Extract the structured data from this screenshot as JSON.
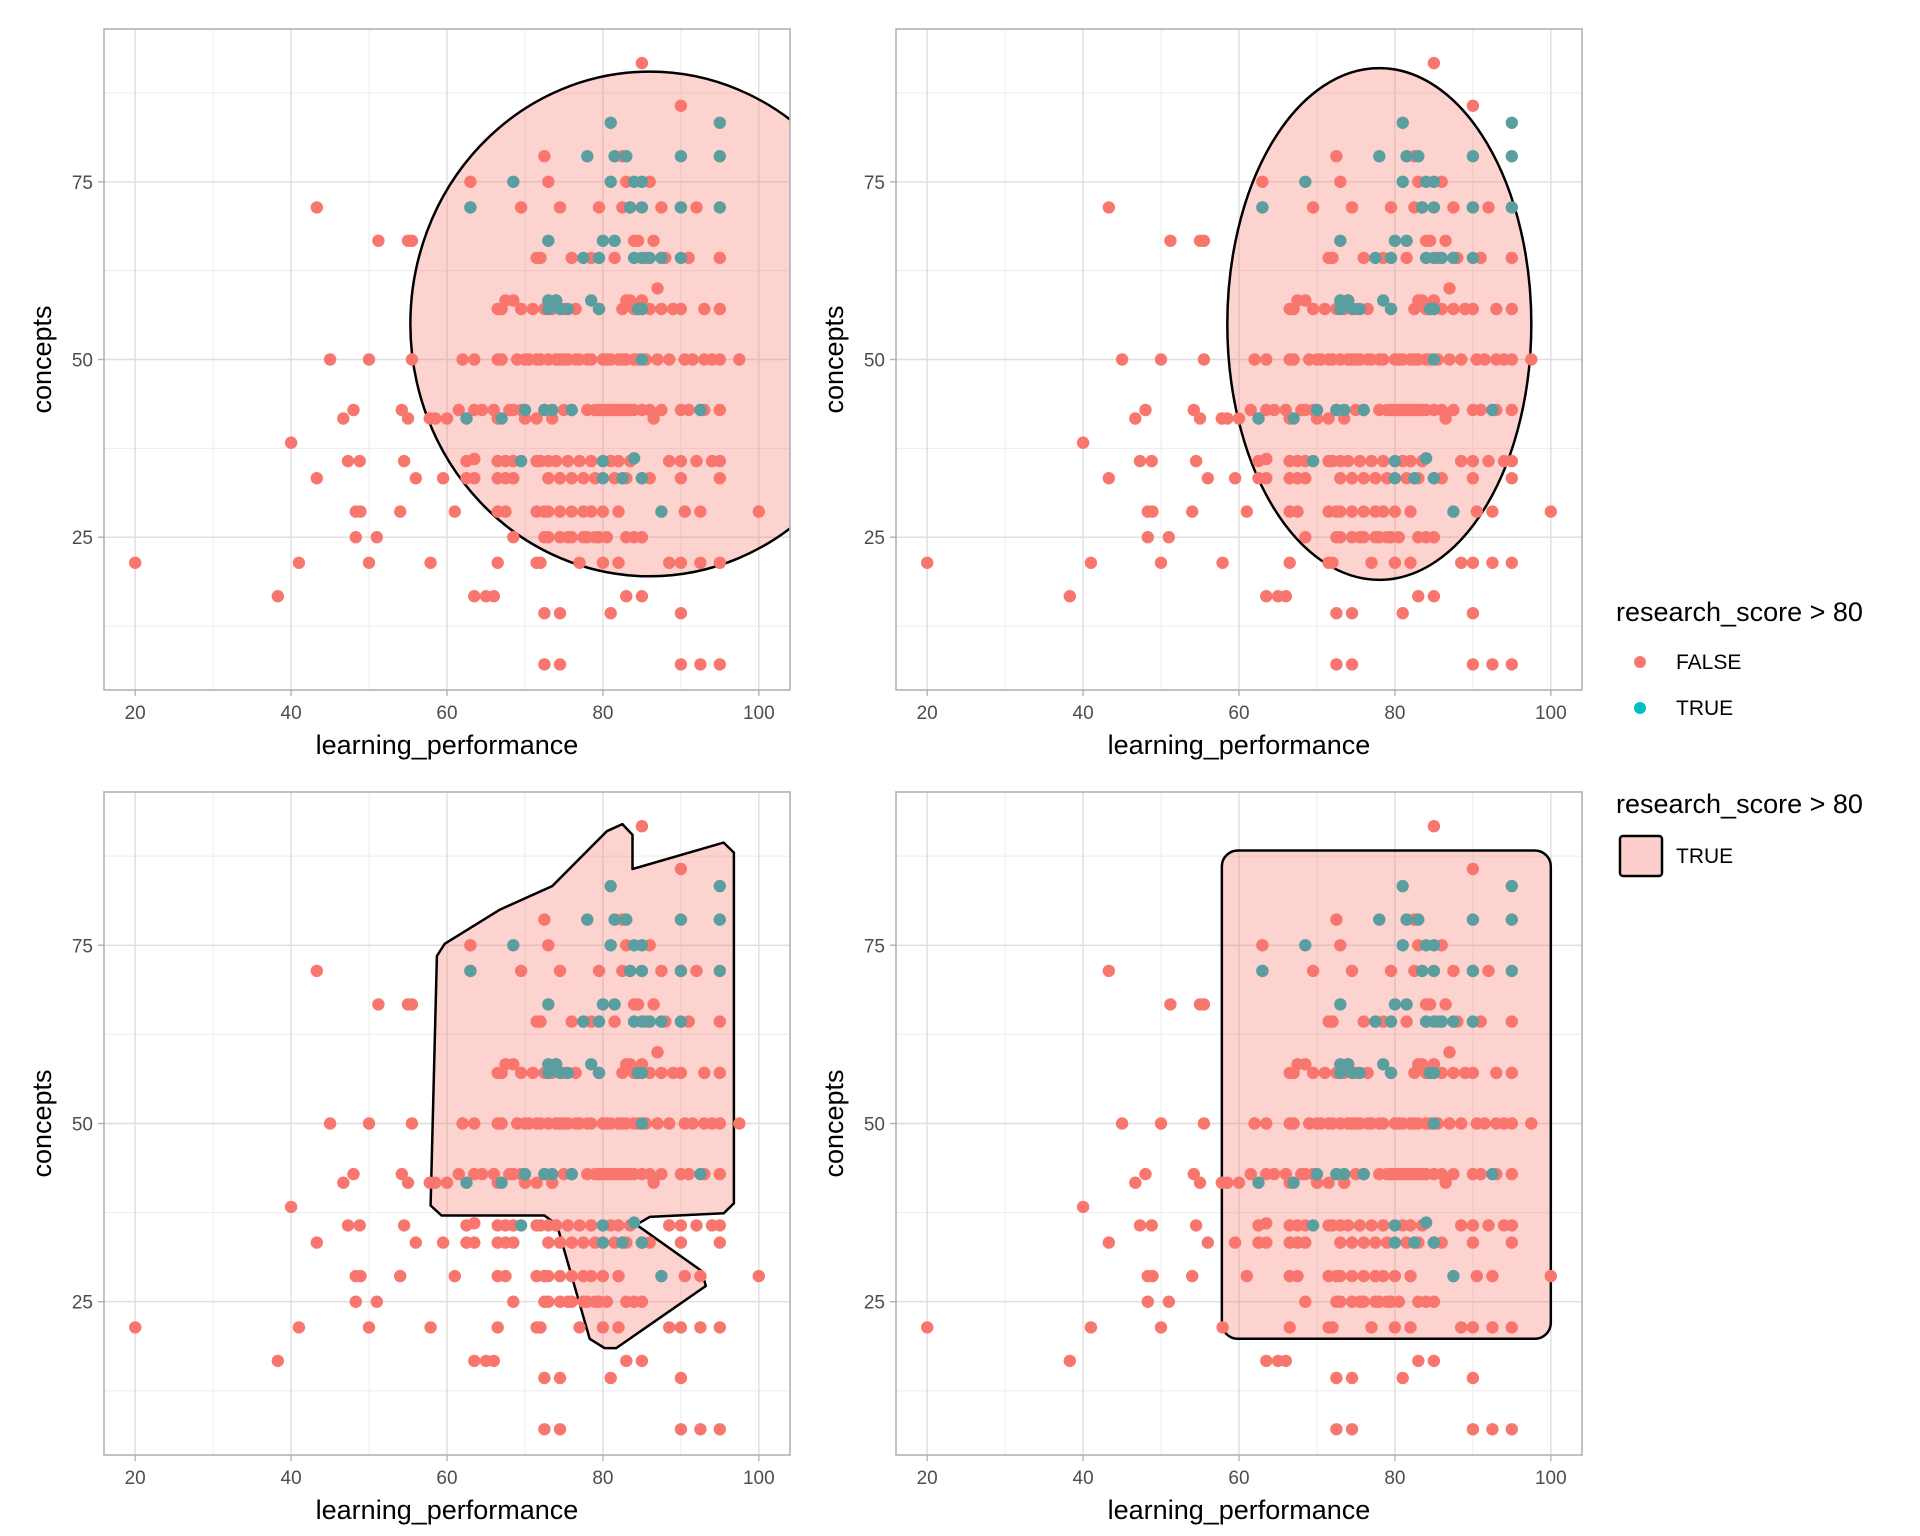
{
  "chart_data": {
    "type": "scatter",
    "xlabel": "learning_performance",
    "ylabel": "concepts",
    "xlim": [
      16,
      104
    ],
    "ylim": [
      3.5,
      96.5
    ],
    "xticks": [
      20,
      40,
      60,
      80,
      100
    ],
    "yticks": [
      25,
      50,
      75
    ],
    "grid": true,
    "legends": [
      {
        "title": "research_score > 80",
        "kind": "points",
        "items": [
          {
            "label": "FALSE",
            "color": "#F8766D"
          },
          {
            "label": "TRUE",
            "color": "#00BFC4"
          }
        ]
      },
      {
        "title": "research_score > 80",
        "kind": "fill",
        "items": [
          {
            "label": "TRUE",
            "color": "#F8766D"
          }
        ]
      }
    ],
    "series": [
      {
        "name": "FALSE",
        "color": "#F8766D",
        "points": [
          [
            20,
            21.4
          ],
          [
            38.3,
            16.7
          ],
          [
            40,
            38.3
          ],
          [
            41,
            21.4
          ],
          [
            43.3,
            71.4
          ],
          [
            43.3,
            33.3
          ],
          [
            45,
            50
          ],
          [
            46.7,
            41.7
          ],
          [
            47.3,
            35.7
          ],
          [
            48,
            42.9
          ],
          [
            48.3,
            28.6
          ],
          [
            48.3,
            25
          ],
          [
            48.8,
            35.7
          ],
          [
            48.9,
            28.6
          ],
          [
            50,
            50
          ],
          [
            50,
            21.4
          ],
          [
            51,
            25
          ],
          [
            51.2,
            66.7
          ],
          [
            54,
            28.6
          ],
          [
            54.2,
            42.9
          ],
          [
            54.5,
            35.7
          ],
          [
            55,
            66.7
          ],
          [
            55.5,
            66.7
          ],
          [
            55,
            41.7
          ],
          [
            55.5,
            50
          ],
          [
            56,
            33.3
          ],
          [
            57.8,
            41.7
          ],
          [
            57.9,
            21.4
          ],
          [
            58.5,
            41.7
          ],
          [
            59.5,
            33.3
          ],
          [
            60,
            41.7
          ],
          [
            61,
            28.6
          ],
          [
            61.5,
            42.9
          ],
          [
            62,
            50
          ],
          [
            62.5,
            35.7
          ],
          [
            62.5,
            33.3
          ],
          [
            63,
            75
          ],
          [
            63,
            71.4
          ],
          [
            63.5,
            50
          ],
          [
            63.5,
            42.9
          ],
          [
            63.5,
            36
          ],
          [
            63.5,
            33.3
          ],
          [
            63.5,
            16.7
          ],
          [
            64.5,
            42.9
          ],
          [
            65,
            16.7
          ],
          [
            66,
            16.7
          ],
          [
            66,
            42.9
          ],
          [
            66.5,
            57.1
          ],
          [
            66.5,
            50
          ],
          [
            66.5,
            41.7
          ],
          [
            66.5,
            35.7
          ],
          [
            66.5,
            33.3
          ],
          [
            66.5,
            28.6
          ],
          [
            66.5,
            21.4
          ],
          [
            67,
            57.1
          ],
          [
            67,
            50
          ],
          [
            67.5,
            58.3
          ],
          [
            67.5,
            35.7
          ],
          [
            67.5,
            33.3
          ],
          [
            67.5,
            28.6
          ],
          [
            68,
            42.9
          ],
          [
            68.5,
            58.3
          ],
          [
            68.5,
            42.9
          ],
          [
            68.5,
            35.7
          ],
          [
            68.5,
            33.3
          ],
          [
            68.5,
            25
          ],
          [
            69,
            50
          ],
          [
            69.5,
            71.4
          ],
          [
            69.5,
            57.1
          ],
          [
            69.5,
            42.9
          ],
          [
            70,
            50
          ],
          [
            70,
            41.7
          ],
          [
            70.5,
            50
          ],
          [
            71,
            57.1
          ],
          [
            71.5,
            64.3
          ],
          [
            71.5,
            50
          ],
          [
            71.5,
            41.7
          ],
          [
            71.5,
            35.7
          ],
          [
            71.5,
            28.6
          ],
          [
            71.5,
            21.4
          ],
          [
            72,
            64.3
          ],
          [
            72,
            50
          ],
          [
            72,
            35.7
          ],
          [
            72,
            21.4
          ],
          [
            72.5,
            78.6
          ],
          [
            72.5,
            57.1
          ],
          [
            72.5,
            42.9
          ],
          [
            72.5,
            28.6
          ],
          [
            72.5,
            25
          ],
          [
            72.5,
            14.3
          ],
          [
            72.5,
            7.1
          ],
          [
            73,
            75
          ],
          [
            73,
            50
          ],
          [
            73,
            35.7
          ],
          [
            73,
            33.3
          ],
          [
            73,
            28.6
          ],
          [
            73,
            25
          ],
          [
            73.5,
            57.1
          ],
          [
            73.5,
            41.7
          ],
          [
            74,
            50
          ],
          [
            74,
            58.3
          ],
          [
            74,
            35.7
          ],
          [
            74.5,
            71.4
          ],
          [
            74.5,
            50
          ],
          [
            74.5,
            33.3
          ],
          [
            74.5,
            28.6
          ],
          [
            74.5,
            25
          ],
          [
            74.5,
            14.3
          ],
          [
            74.5,
            7.1
          ],
          [
            75,
            50
          ],
          [
            75,
            42.9
          ],
          [
            75,
            57.1
          ],
          [
            75.5,
            50
          ],
          [
            75.5,
            35.7
          ],
          [
            75.5,
            25
          ],
          [
            76,
            64.3
          ],
          [
            76,
            42.9
          ],
          [
            76,
            33.3
          ],
          [
            76,
            28.6
          ],
          [
            76,
            25
          ],
          [
            76.5,
            50
          ],
          [
            76.5,
            57.1
          ],
          [
            77,
            50
          ],
          [
            77,
            35.7
          ],
          [
            77,
            21.4
          ],
          [
            77.5,
            33.3
          ],
          [
            77.5,
            28.6
          ],
          [
            77.5,
            25
          ],
          [
            78,
            50
          ],
          [
            78,
            42.9
          ],
          [
            78,
            25
          ],
          [
            78.5,
            50
          ],
          [
            78.5,
            64.3
          ],
          [
            78.5,
            35.7
          ],
          [
            78.5,
            28.6
          ],
          [
            79,
            42.9
          ],
          [
            79,
            33.3
          ],
          [
            79,
            25
          ],
          [
            79.5,
            71.4
          ],
          [
            79.5,
            57.1
          ],
          [
            79.5,
            42.9
          ],
          [
            79.5,
            25
          ],
          [
            80,
            50
          ],
          [
            80,
            42.9
          ],
          [
            80,
            28.6
          ],
          [
            80,
            21.4
          ],
          [
            80.5,
            50
          ],
          [
            80.5,
            42.9
          ],
          [
            80.5,
            25
          ],
          [
            81,
            50
          ],
          [
            81,
            42.9
          ],
          [
            81,
            35.7
          ],
          [
            81,
            14.3
          ],
          [
            81.5,
            64.3
          ],
          [
            81.5,
            42.9
          ],
          [
            81.5,
            33.3
          ],
          [
            82,
            50
          ],
          [
            82,
            42.9
          ],
          [
            82,
            35.7
          ],
          [
            82,
            28.6
          ],
          [
            82,
            21.4
          ],
          [
            82.5,
            78.6
          ],
          [
            82.5,
            71.4
          ],
          [
            82.5,
            57.1
          ],
          [
            82.5,
            50
          ],
          [
            82.5,
            42.9
          ],
          [
            83,
            75
          ],
          [
            83,
            58.3
          ],
          [
            83,
            50
          ],
          [
            83,
            42.9
          ],
          [
            83,
            33.3
          ],
          [
            83,
            25
          ],
          [
            83,
            16.7
          ],
          [
            83.5,
            71.4
          ],
          [
            83.5,
            58.3
          ],
          [
            83.5,
            42.9
          ],
          [
            83.5,
            35.7
          ],
          [
            84,
            66.7
          ],
          [
            84,
            57.1
          ],
          [
            84,
            50
          ],
          [
            84,
            42.9
          ],
          [
            84,
            25
          ],
          [
            84.5,
            66.7
          ],
          [
            84.5,
            57.1
          ],
          [
            84.5,
            50
          ],
          [
            85,
            91.7
          ],
          [
            85,
            58.3
          ],
          [
            85,
            57.1
          ],
          [
            85,
            42.9
          ],
          [
            85,
            33.3
          ],
          [
            85,
            25
          ],
          [
            85,
            16.7
          ],
          [
            85.5,
            64.3
          ],
          [
            85.5,
            50
          ],
          [
            86,
            75
          ],
          [
            86,
            57.1
          ],
          [
            86,
            42.9
          ],
          [
            86,
            33.3
          ],
          [
            86.5,
            66.7
          ],
          [
            86.5,
            41.7
          ],
          [
            87,
            50
          ],
          [
            87,
            60
          ],
          [
            87.5,
            71.4
          ],
          [
            87.5,
            57.1
          ],
          [
            87.5,
            42.9
          ],
          [
            88,
            64.3
          ],
          [
            88.5,
            50
          ],
          [
            88.5,
            35.7
          ],
          [
            88.5,
            21.4
          ],
          [
            89,
            57.1
          ],
          [
            90,
            85.7
          ],
          [
            90,
            71.4
          ],
          [
            90,
            57.1
          ],
          [
            90,
            42.9
          ],
          [
            90,
            35.7
          ],
          [
            90,
            33.3
          ],
          [
            90,
            21.4
          ],
          [
            90,
            14.3
          ],
          [
            90,
            7.1
          ],
          [
            90.5,
            50
          ],
          [
            90.5,
            28.6
          ],
          [
            91,
            64.3
          ],
          [
            91,
            42.9
          ],
          [
            91.5,
            50
          ],
          [
            92,
            71.4
          ],
          [
            92,
            35.7
          ],
          [
            92.5,
            28.6
          ],
          [
            92.5,
            21.4
          ],
          [
            92.5,
            7.1
          ],
          [
            93,
            57.1
          ],
          [
            93,
            42.9
          ],
          [
            93,
            50
          ],
          [
            94,
            50
          ],
          [
            94,
            35.7
          ],
          [
            95,
            64.3
          ],
          [
            95,
            57.1
          ],
          [
            95,
            50
          ],
          [
            95,
            42.9
          ],
          [
            95,
            35.7
          ],
          [
            95,
            33.3
          ],
          [
            95,
            21.4
          ],
          [
            95,
            7.1
          ],
          [
            97.5,
            50
          ],
          [
            100,
            28.6
          ]
        ]
      },
      {
        "name": "TRUE",
        "color": "#5B9EA0",
        "points": [
          [
            62.5,
            41.7
          ],
          [
            63,
            71.4
          ],
          [
            67,
            41.7
          ],
          [
            68.5,
            75
          ],
          [
            69.5,
            35.7
          ],
          [
            70,
            42.9
          ],
          [
            72.5,
            42.9
          ],
          [
            73,
            66.7
          ],
          [
            73,
            58.3
          ],
          [
            73,
            57.1
          ],
          [
            73.5,
            42.9
          ],
          [
            74,
            58.3
          ],
          [
            74.5,
            57.1
          ],
          [
            75.5,
            57.1
          ],
          [
            76,
            42.9
          ],
          [
            77.5,
            64.3
          ],
          [
            78,
            78.6
          ],
          [
            78.5,
            58.3
          ],
          [
            79.5,
            64.3
          ],
          [
            79.5,
            57.1
          ],
          [
            80,
            66.7
          ],
          [
            80,
            35.7
          ],
          [
            80,
            33.3
          ],
          [
            81,
            83.3
          ],
          [
            81,
            75
          ],
          [
            81.5,
            78.6
          ],
          [
            81.5,
            66.7
          ],
          [
            82.5,
            33.3
          ],
          [
            83,
            78.6
          ],
          [
            83.5,
            71.4
          ],
          [
            84,
            75
          ],
          [
            84,
            64.3
          ],
          [
            84,
            36.1
          ],
          [
            84.5,
            57.1
          ],
          [
            85,
            75
          ],
          [
            85,
            71.4
          ],
          [
            85,
            64.3
          ],
          [
            85,
            57.1
          ],
          [
            85,
            50
          ],
          [
            85,
            33.3
          ],
          [
            86,
            64.3
          ],
          [
            87.5,
            64.3
          ],
          [
            87.5,
            28.6
          ],
          [
            90,
            78.6
          ],
          [
            90,
            71.4
          ],
          [
            90,
            64.3
          ],
          [
            92.5,
            42.9
          ],
          [
            95,
            83.3
          ],
          [
            95,
            78.6
          ],
          [
            95,
            71.4
          ]
        ]
      }
    ],
    "annotation_shapes": [
      {
        "panel": "top-left",
        "shape": "circle",
        "fill": "#F8766D",
        "outline": "#000000"
      },
      {
        "panel": "top-right",
        "shape": "ellipse",
        "fill": "#F8766D",
        "outline": "#000000"
      },
      {
        "panel": "bottom-left",
        "shape": "hull",
        "fill": "#F8766D",
        "outline": "#000000"
      },
      {
        "panel": "bottom-right",
        "shape": "rectangle",
        "fill": "#F8766D",
        "outline": "#000000"
      }
    ]
  }
}
